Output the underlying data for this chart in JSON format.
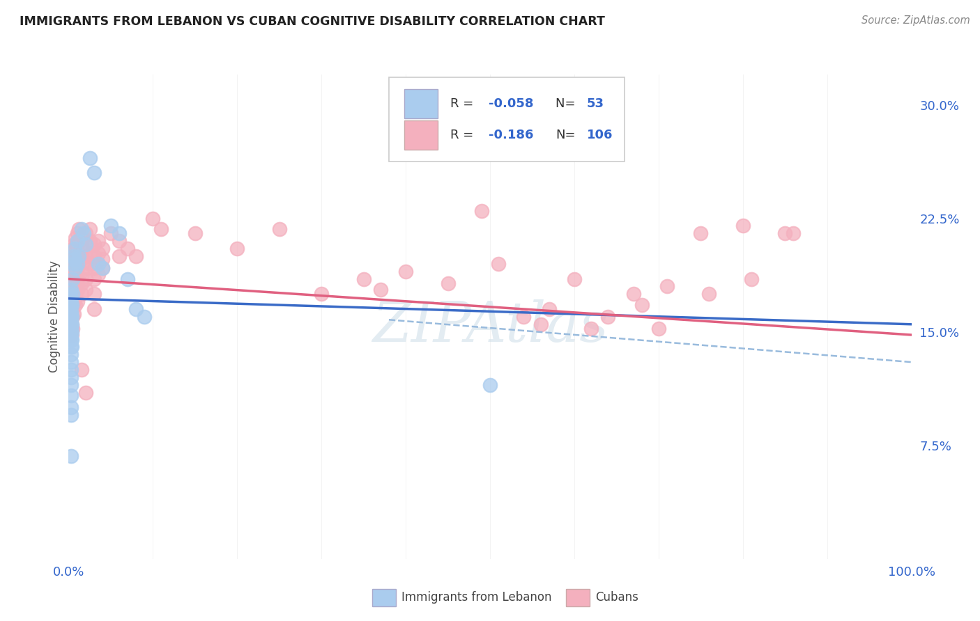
{
  "title": "IMMIGRANTS FROM LEBANON VS CUBAN COGNITIVE DISABILITY CORRELATION CHART",
  "source": "Source: ZipAtlas.com",
  "ylabel": "Cognitive Disability",
  "ylabel_ticks": [
    "7.5%",
    "15.0%",
    "22.5%",
    "30.0%"
  ],
  "ylabel_tick_vals": [
    0.075,
    0.15,
    0.225,
    0.3
  ],
  "xmin": 0.0,
  "xmax": 1.0,
  "ymin": 0.0,
  "ymax": 0.32,
  "color_blue": "#aaccee",
  "color_pink": "#f4b0be",
  "color_text_blue": "#3366cc",
  "watermark": "ZIPAtlas",
  "blue_scatter": [
    [
      0.002,
      0.17
    ],
    [
      0.002,
      0.165
    ],
    [
      0.002,
      0.16
    ],
    [
      0.002,
      0.175
    ],
    [
      0.003,
      0.168
    ],
    [
      0.003,
      0.163
    ],
    [
      0.003,
      0.158
    ],
    [
      0.003,
      0.172
    ],
    [
      0.003,
      0.155
    ],
    [
      0.003,
      0.178
    ],
    [
      0.003,
      0.148
    ],
    [
      0.003,
      0.145
    ],
    [
      0.003,
      0.152
    ],
    [
      0.003,
      0.162
    ],
    [
      0.003,
      0.14
    ],
    [
      0.003,
      0.135
    ],
    [
      0.003,
      0.13
    ],
    [
      0.003,
      0.125
    ],
    [
      0.003,
      0.12
    ],
    [
      0.003,
      0.115
    ],
    [
      0.004,
      0.168
    ],
    [
      0.004,
      0.16
    ],
    [
      0.004,
      0.155
    ],
    [
      0.004,
      0.15
    ],
    [
      0.004,
      0.145
    ],
    [
      0.004,
      0.14
    ],
    [
      0.005,
      0.185
    ],
    [
      0.005,
      0.175
    ],
    [
      0.006,
      0.2
    ],
    [
      0.006,
      0.195
    ],
    [
      0.007,
      0.205
    ],
    [
      0.007,
      0.198
    ],
    [
      0.008,
      0.192
    ],
    [
      0.01,
      0.21
    ],
    [
      0.01,
      0.195
    ],
    [
      0.012,
      0.2
    ],
    [
      0.015,
      0.218
    ],
    [
      0.018,
      0.215
    ],
    [
      0.02,
      0.208
    ],
    [
      0.025,
      0.265
    ],
    [
      0.03,
      0.255
    ],
    [
      0.035,
      0.195
    ],
    [
      0.04,
      0.192
    ],
    [
      0.05,
      0.22
    ],
    [
      0.06,
      0.215
    ],
    [
      0.07,
      0.185
    ],
    [
      0.08,
      0.165
    ],
    [
      0.09,
      0.16
    ],
    [
      0.003,
      0.108
    ],
    [
      0.003,
      0.1
    ],
    [
      0.003,
      0.095
    ],
    [
      0.5,
      0.115
    ],
    [
      0.003,
      0.068
    ]
  ],
  "pink_scatter": [
    [
      0.003,
      0.195
    ],
    [
      0.003,
      0.188
    ],
    [
      0.003,
      0.182
    ],
    [
      0.003,
      0.175
    ],
    [
      0.003,
      0.168
    ],
    [
      0.003,
      0.162
    ],
    [
      0.003,
      0.155
    ],
    [
      0.003,
      0.148
    ],
    [
      0.004,
      0.2
    ],
    [
      0.004,
      0.193
    ],
    [
      0.004,
      0.186
    ],
    [
      0.004,
      0.178
    ],
    [
      0.004,
      0.17
    ],
    [
      0.004,
      0.163
    ],
    [
      0.004,
      0.155
    ],
    [
      0.004,
      0.148
    ],
    [
      0.005,
      0.205
    ],
    [
      0.005,
      0.197
    ],
    [
      0.005,
      0.19
    ],
    [
      0.005,
      0.182
    ],
    [
      0.005,
      0.175
    ],
    [
      0.005,
      0.168
    ],
    [
      0.005,
      0.16
    ],
    [
      0.005,
      0.152
    ],
    [
      0.006,
      0.208
    ],
    [
      0.006,
      0.2
    ],
    [
      0.006,
      0.192
    ],
    [
      0.006,
      0.185
    ],
    [
      0.006,
      0.178
    ],
    [
      0.006,
      0.17
    ],
    [
      0.006,
      0.162
    ],
    [
      0.008,
      0.212
    ],
    [
      0.008,
      0.205
    ],
    [
      0.008,
      0.197
    ],
    [
      0.008,
      0.19
    ],
    [
      0.008,
      0.182
    ],
    [
      0.008,
      0.175
    ],
    [
      0.008,
      0.168
    ],
    [
      0.01,
      0.215
    ],
    [
      0.01,
      0.208
    ],
    [
      0.01,
      0.2
    ],
    [
      0.01,
      0.192
    ],
    [
      0.01,
      0.185
    ],
    [
      0.01,
      0.178
    ],
    [
      0.01,
      0.17
    ],
    [
      0.012,
      0.218
    ],
    [
      0.012,
      0.21
    ],
    [
      0.012,
      0.202
    ],
    [
      0.015,
      0.212
    ],
    [
      0.015,
      0.205
    ],
    [
      0.015,
      0.198
    ],
    [
      0.015,
      0.19
    ],
    [
      0.015,
      0.182
    ],
    [
      0.015,
      0.175
    ],
    [
      0.015,
      0.125
    ],
    [
      0.02,
      0.215
    ],
    [
      0.02,
      0.208
    ],
    [
      0.02,
      0.2
    ],
    [
      0.02,
      0.192
    ],
    [
      0.02,
      0.185
    ],
    [
      0.02,
      0.178
    ],
    [
      0.02,
      0.11
    ],
    [
      0.025,
      0.218
    ],
    [
      0.025,
      0.21
    ],
    [
      0.025,
      0.202
    ],
    [
      0.025,
      0.195
    ],
    [
      0.03,
      0.208
    ],
    [
      0.03,
      0.2
    ],
    [
      0.03,
      0.192
    ],
    [
      0.03,
      0.185
    ],
    [
      0.03,
      0.175
    ],
    [
      0.03,
      0.165
    ],
    [
      0.035,
      0.21
    ],
    [
      0.035,
      0.202
    ],
    [
      0.035,
      0.195
    ],
    [
      0.035,
      0.188
    ],
    [
      0.04,
      0.205
    ],
    [
      0.04,
      0.198
    ],
    [
      0.04,
      0.192
    ],
    [
      0.05,
      0.215
    ],
    [
      0.06,
      0.21
    ],
    [
      0.06,
      0.2
    ],
    [
      0.07,
      0.205
    ],
    [
      0.08,
      0.2
    ],
    [
      0.1,
      0.225
    ],
    [
      0.11,
      0.218
    ],
    [
      0.15,
      0.215
    ],
    [
      0.2,
      0.205
    ],
    [
      0.25,
      0.218
    ],
    [
      0.3,
      0.175
    ],
    [
      0.35,
      0.185
    ],
    [
      0.37,
      0.178
    ],
    [
      0.4,
      0.19
    ],
    [
      0.45,
      0.182
    ],
    [
      0.49,
      0.23
    ],
    [
      0.51,
      0.195
    ],
    [
      0.54,
      0.16
    ],
    [
      0.56,
      0.155
    ],
    [
      0.57,
      0.165
    ],
    [
      0.6,
      0.185
    ],
    [
      0.62,
      0.152
    ],
    [
      0.64,
      0.16
    ],
    [
      0.67,
      0.175
    ],
    [
      0.68,
      0.168
    ],
    [
      0.7,
      0.152
    ],
    [
      0.71,
      0.18
    ],
    [
      0.75,
      0.215
    ],
    [
      0.76,
      0.175
    ],
    [
      0.8,
      0.22
    ],
    [
      0.81,
      0.185
    ],
    [
      0.85,
      0.215
    ],
    [
      0.86,
      0.215
    ]
  ],
  "blue_line": {
    "x0": 0.0,
    "x1": 1.0,
    "y0": 0.172,
    "y1": 0.155
  },
  "pink_line": {
    "x0": 0.0,
    "x1": 1.0,
    "y0": 0.185,
    "y1": 0.148
  },
  "blue_dash_line": {
    "x0": 0.38,
    "x1": 1.0,
    "y0": 0.158,
    "y1": 0.13
  }
}
